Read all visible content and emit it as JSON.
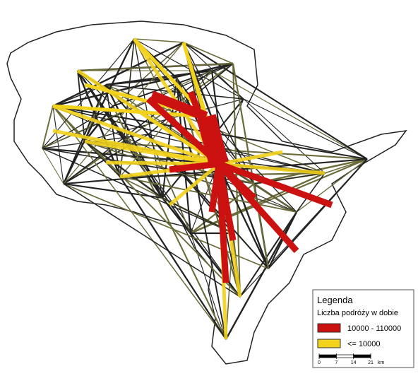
{
  "legend": {
    "title": "Legenda",
    "subtitle": "Liczba podróży w dobie",
    "items": [
      {
        "label": "10000 - 110000",
        "color": "#cc1111"
      },
      {
        "label": "<= 10000",
        "color": "#f2d21b"
      }
    ]
  },
  "scale": {
    "ticks": [
      0,
      7,
      14,
      21
    ],
    "unit": "km"
  }
}
